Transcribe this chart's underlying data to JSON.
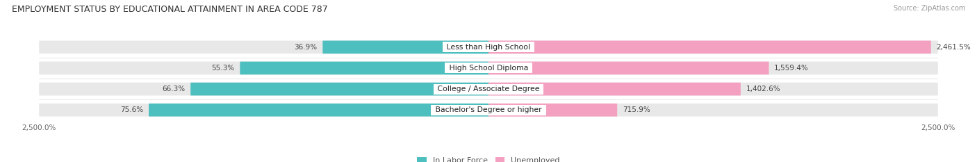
{
  "title": "EMPLOYMENT STATUS BY EDUCATIONAL ATTAINMENT IN AREA CODE 787",
  "source": "Source: ZipAtlas.com",
  "categories": [
    "Less than High School",
    "High School Diploma",
    "College / Associate Degree",
    "Bachelor's Degree or higher"
  ],
  "labor_force_values": [
    -922.5,
    -1382.5,
    -1657.5,
    -1890.0
  ],
  "labor_force_labels": [
    "36.9%",
    "55.3%",
    "66.3%",
    "75.6%"
  ],
  "unemployed_values": [
    2461.5,
    1559.4,
    1402.6,
    715.9
  ],
  "unemployed_labels": [
    "2,461.5%",
    "1,559.4%",
    "1,402.6%",
    "715.9%"
  ],
  "labor_force_color": "#4dbfbf",
  "unemployed_color": "#f4a0c0",
  "bar_bg_color": "#e8e8e8",
  "xlim": [
    -2500,
    2500
  ],
  "xtick_labels_left": "2,500.0%",
  "xtick_labels_right": "2,500.0%",
  "legend_labor": "In Labor Force",
  "legend_unemployed": "Unemployed",
  "bar_height": 0.62,
  "fig_bg": "#ffffff",
  "title_fontsize": 9,
  "label_fontsize": 7.5,
  "category_fontsize": 7.8
}
